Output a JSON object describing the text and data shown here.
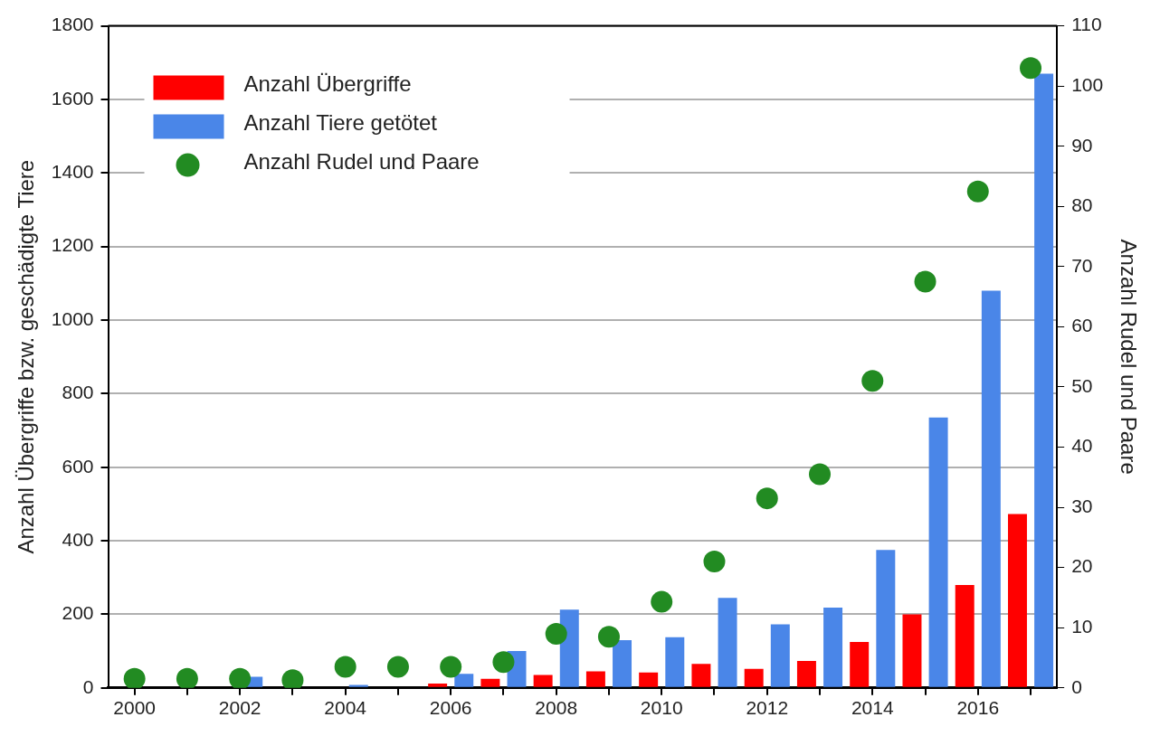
{
  "chart_data": {
    "type": "bar",
    "categories": [
      "2000",
      null,
      "2002",
      null,
      "2004",
      null,
      "2006",
      null,
      "2008",
      null,
      "2010",
      null,
      "2012",
      null,
      "2014",
      null,
      "2016",
      null
    ],
    "series": [
      {
        "name": "Anzahl Übergriffe",
        "color": "#ff0000",
        "values": [
          0,
          0,
          0,
          0,
          0,
          0,
          12,
          25,
          35,
          45,
          42,
          65,
          52,
          73,
          125,
          200,
          280,
          473
        ]
      },
      {
        "name": "Anzahl Tiere getötet",
        "color": "#4a86e8",
        "values": [
          0,
          0,
          30,
          0,
          8,
          0,
          38,
          100,
          213,
          130,
          138,
          245,
          173,
          218,
          375,
          735,
          1080,
          1670
        ]
      },
      {
        "name": "Anzahl Rudel und Paare",
        "type": "scatter",
        "axis": "y2",
        "marker": "circle",
        "color": "#228b22",
        "values": [
          1.5,
          1.5,
          1.5,
          1.3,
          3.5,
          3.5,
          3.5,
          4.3,
          9,
          8.5,
          14.3,
          21,
          31.5,
          35.5,
          51,
          67.5,
          82.5,
          103
        ]
      }
    ],
    "ylabel": "Anzahl Übergriffe bzw. geschädigte Tiere",
    "y2label": "Anzahl Rudel und Paare",
    "ylim": [
      0,
      1800
    ],
    "yticks": [
      0,
      200,
      400,
      600,
      800,
      1000,
      1200,
      1400,
      1600,
      1800
    ],
    "y2lim": [
      0,
      110
    ],
    "y2ticks": [
      0,
      10,
      20,
      30,
      40,
      50,
      60,
      70,
      80,
      90,
      100,
      110
    ],
    "grid": "y",
    "legend": "top left"
  }
}
